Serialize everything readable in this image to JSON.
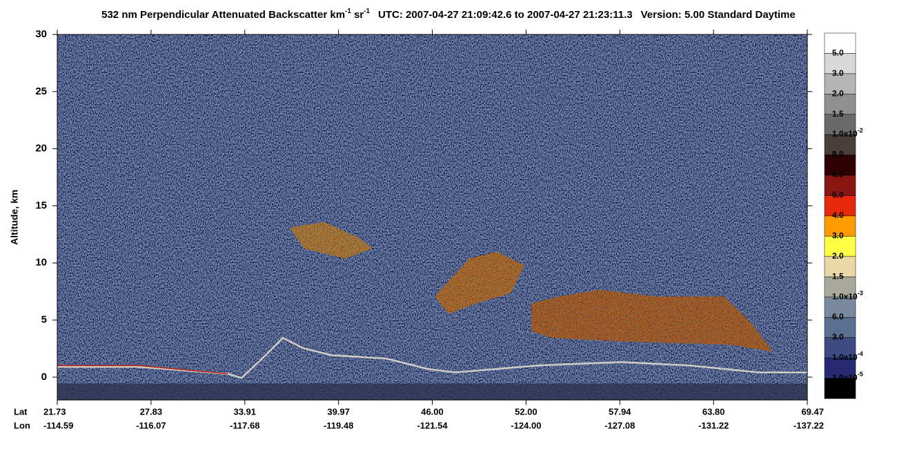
{
  "chart_data": {
    "type": "lidar-curtain",
    "title_parts": [
      {
        "text": "532 nm Perpendicular Attenuated Backscatter km"
      },
      {
        "text": "-1",
        "sup": true
      },
      {
        "text": "sr"
      },
      {
        "text": "-1",
        "sup": true
      },
      {
        "text": "UTC: 2007-04-27 21:09:42.6 to 2007-04-27 21:23:11.3"
      },
      {
        "text": "Version: 5.00 Standard Daytime"
      }
    ],
    "ylabel": "Altitude, km",
    "ylim": [
      -2,
      30
    ],
    "yticks": [
      0,
      5,
      10,
      15,
      20,
      25,
      30
    ],
    "xtick_rows": [
      {
        "name": "Lat",
        "labels": [
          "21.73",
          "27.83",
          "33.91",
          "39.97",
          "46.00",
          "52.00",
          "57.94",
          "63.80",
          "69.47"
        ]
      },
      {
        "name": "Lon",
        "labels": [
          "-114.59",
          "-116.07",
          "-117.68",
          "-119.48",
          "-121.54",
          "-124.00",
          "-127.08",
          "-131.22",
          "-137.22"
        ]
      }
    ],
    "colorbar": {
      "colors": [
        "#ffffff",
        "#d8d8d8",
        "#b4b4b4",
        "#909090",
        "#6a6a6a",
        "#4a3e3a",
        "#2e0202",
        "#8a1612",
        "#e6280c",
        "#ff9a00",
        "#ffff44",
        "#ead8a6",
        "#a8a89c",
        "#7a8a9e",
        "#5a6e90",
        "#3c4c82",
        "#262a72",
        "#000000"
      ],
      "labels": [
        {
          "text": "5.0"
        },
        {
          "text": "3.0"
        },
        {
          "text": "2.0"
        },
        {
          "text": "1.5"
        },
        {
          "text": "1.0x10",
          "sup": "-2"
        },
        {
          "text": "8.0"
        },
        {
          "text": "6.0"
        },
        {
          "text": "5.0"
        },
        {
          "text": "4.0"
        },
        {
          "text": "3.0"
        },
        {
          "text": "2.0"
        },
        {
          "text": "1.5"
        },
        {
          "text": "1.0x10",
          "sup": "-3"
        },
        {
          "text": "6.0"
        },
        {
          "text": "3.0"
        },
        {
          "text": "1.0x10",
          "sup": "-4"
        },
        {
          "text": "1.0x10",
          "sup": "-5"
        }
      ]
    }
  }
}
